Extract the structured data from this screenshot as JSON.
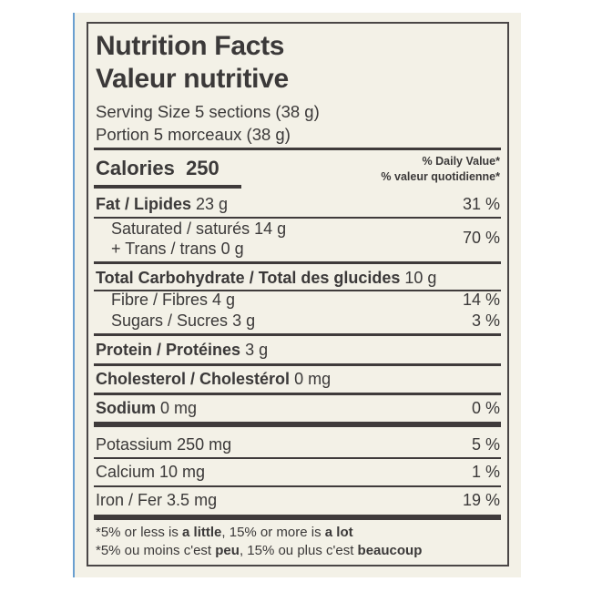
{
  "label": {
    "title_en": "Nutrition Facts",
    "title_fr": "Valeur nutritive",
    "serving_en": "Serving Size 5 sections (38 g)",
    "serving_fr": "Portion 5 morceaux (38 g)",
    "calories_label": "Calories",
    "calories_value": "250",
    "dv_en": "% Daily Value*",
    "dv_fr": "% valeur quotidienne*",
    "rows": [
      {
        "name": "Fat / Lipides",
        "amount": "23 g",
        "dv": "31 %"
      },
      {
        "name": "Saturated / saturés",
        "amount": "14 g",
        "dv": "70 %"
      },
      {
        "name": "+ Trans / trans",
        "amount": "0 g"
      },
      {
        "name": "Total Carbohydrate / Total des glucides",
        "amount": "10 g"
      },
      {
        "name": "Fibre / Fibres",
        "amount": "4 g",
        "dv": "14 %"
      },
      {
        "name": "Sugars / Sucres",
        "amount": "3 g",
        "dv": "3 %"
      },
      {
        "name": "Protein / Protéines",
        "amount": "3 g"
      },
      {
        "name": "Cholesterol / Cholestérol",
        "amount": "0 mg"
      },
      {
        "name": "Sodium",
        "amount": "0 mg",
        "dv": "0 %"
      },
      {
        "name": "Potassium",
        "amount": "250 mg",
        "dv": "5 %"
      },
      {
        "name": "Calcium",
        "amount": "10 mg",
        "dv": "1 %"
      },
      {
        "name": "Iron / Fer",
        "amount": "3.5 mg",
        "dv": "19 %"
      }
    ],
    "footnote_en": {
      "a": "*5% or less is ",
      "b": "a little",
      "c": ", 15% or more is ",
      "d": "a lot"
    },
    "footnote_fr": {
      "a": "*5% ou moins c'est ",
      "b": "peu",
      "c": ", 15% ou plus c'est ",
      "d": "beaucoup"
    }
  }
}
